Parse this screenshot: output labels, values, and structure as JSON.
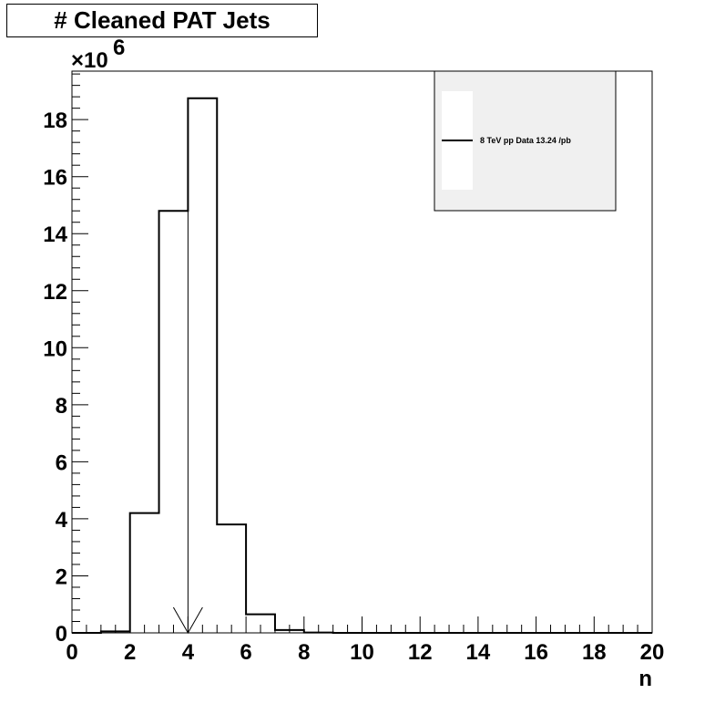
{
  "chart_data": {
    "type": "bar",
    "title": "# Cleaned PAT Jets",
    "xlabel": "n",
    "ylabel": "",
    "y_multiplier_prefix": "×10",
    "y_multiplier_exp": "6",
    "xlim": [
      0,
      20
    ],
    "ylim": [
      0,
      19.7
    ],
    "x_ticks": [
      "0",
      "2",
      "4",
      "6",
      "8",
      "10",
      "12",
      "14",
      "16",
      "18",
      "20"
    ],
    "y_ticks": [
      "0",
      "2",
      "4",
      "6",
      "8",
      "10",
      "12",
      "14",
      "16",
      "18"
    ],
    "bin_edges": [
      0,
      1,
      2,
      3,
      4,
      5,
      6,
      7,
      8,
      9,
      10,
      11,
      12,
      13,
      14,
      15,
      16,
      17,
      18,
      19,
      20
    ],
    "series": [
      {
        "name": "8 TeV pp Data 13.24 /pb",
        "values": [
          0,
          0.05,
          4.2,
          14.8,
          18.75,
          3.8,
          0.65,
          0.1,
          0.01,
          0,
          0,
          0,
          0,
          0,
          0,
          0,
          0,
          0,
          0,
          0
        ]
      }
    ],
    "mean_marker_x": 4.0,
    "legend": {
      "position": "top-right",
      "entries": [
        "8 TeV pp Data 13.24 /pb"
      ]
    },
    "grid": false,
    "colors": {
      "line": "#000000",
      "legend_bg": "#f0f0f0",
      "background": "#ffffff"
    }
  }
}
